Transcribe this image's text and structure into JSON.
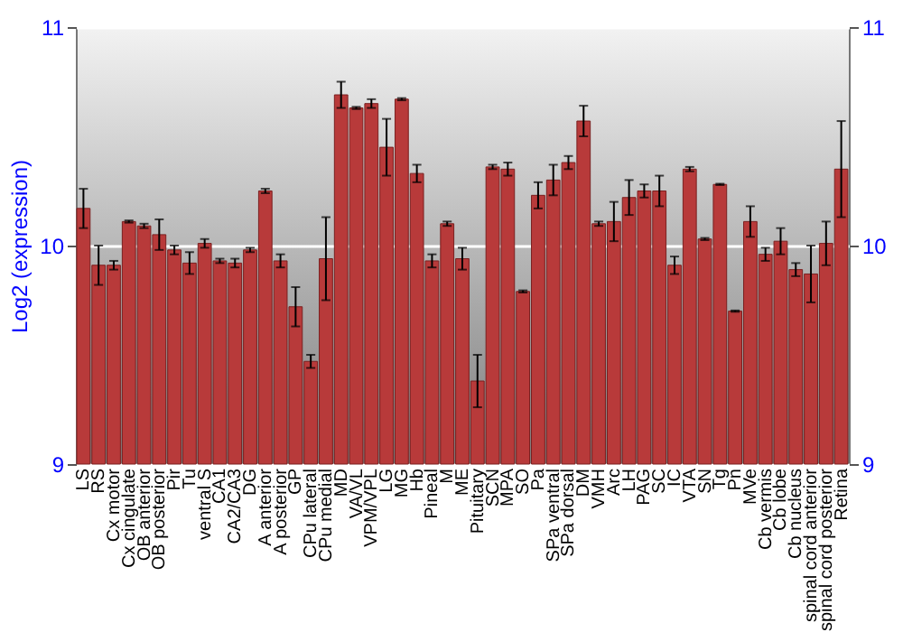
{
  "chart_data": {
    "type": "bar",
    "ylabel": "Log2 (expression)",
    "categories": [
      "LS",
      "RS",
      "Cx motor",
      "Cx cingulate",
      "OB anterior",
      "OB posterior",
      "Pir",
      "Tu",
      "ventral S",
      "CA1",
      "CA2/CA3",
      "DG",
      "A anterior",
      "A posterior",
      "GP",
      "CPu lateral",
      "CPu medial",
      "MD",
      "VA/VL",
      "VPM/VPL",
      "LG",
      "MG",
      "Hb",
      "Pineal",
      "M",
      "ME",
      "Pituitary",
      "SCN",
      "MPA",
      "SO",
      "Pa",
      "SPa ventral",
      "SPa dorsal",
      "DM",
      "VMH",
      "Arc",
      "LH",
      "PAG",
      "SC",
      "IC",
      "VTA",
      "SN",
      "Tg",
      "Pn",
      "MVe",
      "Cb vermis",
      "Cb lobe",
      "Cb nucleus",
      "spinal cord anterior",
      "spinal cord posterior",
      "Retina"
    ],
    "series": [
      {
        "color": "#b83a3a",
        "values": [
          10.17,
          9.91,
          9.91,
          10.11,
          10.09,
          10.05,
          9.98,
          9.92,
          10.01,
          9.93,
          9.92,
          9.98,
          10.25,
          9.93,
          9.72,
          9.47,
          9.94,
          10.69,
          10.63,
          10.65,
          10.45,
          10.67,
          10.33,
          9.93,
          10.1,
          9.94,
          9.38,
          10.36,
          10.35,
          9.79,
          10.23,
          10.3,
          10.38,
          10.57,
          10.1,
          10.11,
          10.22,
          10.25,
          10.25,
          9.91,
          10.35,
          10.03,
          10.28,
          9.7,
          10.11,
          9.96,
          10.02,
          9.89,
          9.87,
          10.01,
          10.35
        ],
        "errors": [
          0.09,
          0.09,
          0.02,
          0.005,
          0.01,
          0.07,
          0.02,
          0.05,
          0.02,
          0.01,
          0.02,
          0.01,
          0.01,
          0.03,
          0.09,
          0.03,
          0.19,
          0.06,
          0.005,
          0.02,
          0.13,
          0.005,
          0.04,
          0.03,
          0.01,
          0.05,
          0.12,
          0.01,
          0.03,
          0.005,
          0.06,
          0.07,
          0.03,
          0.07,
          0.01,
          0.09,
          0.08,
          0.03,
          0.07,
          0.04,
          0.01,
          0.005,
          0.003,
          0.003,
          0.07,
          0.03,
          0.06,
          0.03,
          0.13,
          0.1,
          0.22
        ]
      }
    ],
    "ylim": [
      9,
      11
    ],
    "yticks": [
      9,
      10,
      11
    ],
    "y2lim": [
      9,
      11
    ],
    "y2ticks": [
      9,
      10,
      11
    ],
    "grid": "y"
  }
}
